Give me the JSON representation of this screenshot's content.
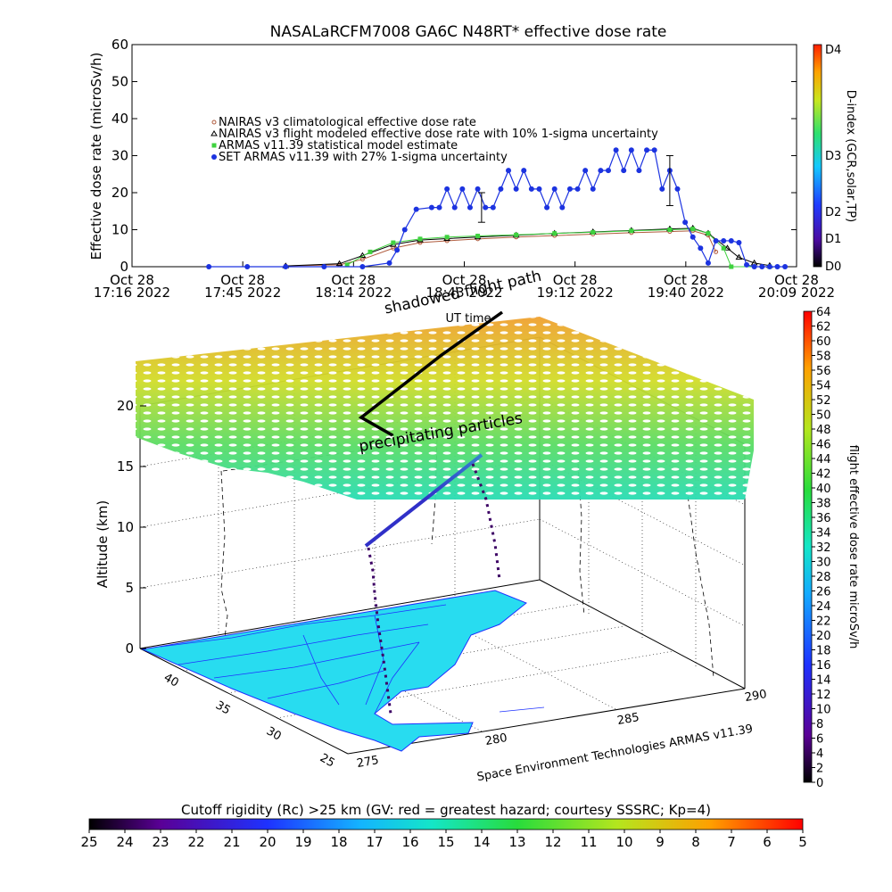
{
  "chart_data": [
    {
      "type": "line",
      "title": "NASALaRCFM7008  GA6C N48RT* effective dose rate",
      "ylabel": "Effective dose rate (microSv/h)",
      "ylim": [
        0,
        60
      ],
      "yticks": [
        "0",
        "10",
        "20",
        "30",
        "40",
        "50",
        "60"
      ],
      "xticks": [
        {
          "l1": "Oct 28",
          "l2": "17:16 2022"
        },
        {
          "l1": "Oct 28",
          "l2": "17:45 2022"
        },
        {
          "l1": "Oct 28",
          "l2": "18:14 2022"
        },
        {
          "l1": "Oct 28",
          "l2": "18:43 2022"
        },
        {
          "l1": "Oct 28",
          "l2": "19:12 2022"
        },
        {
          "l1": "Oct 28",
          "l2": "19:40 2022"
        },
        {
          "l1": "Oct 28",
          "l2": "20:09 2022"
        }
      ],
      "xrange_minutes": [
        0,
        173
      ],
      "legend": [
        "NAIRAS v3 climatological effective dose rate",
        "NAIRAS v3 flight modeled effective dose rate with 10% 1-sigma uncertainty",
        "ARMAS v11.39 statistical model estimate",
        "SET ARMAS v11.39 with 27% 1-sigma uncertainty"
      ],
      "series": [
        {
          "name": "NAIRAS v3 climatological effective dose rate",
          "color": "#b05a3c",
          "x": [
            40,
            54,
            60,
            68,
            75,
            82,
            90,
            100,
            110,
            120,
            130,
            140,
            146,
            150,
            152
          ],
          "y": [
            0.2,
            0.5,
            2,
            5,
            6.5,
            7,
            7.5,
            8,
            8.4,
            8.8,
            9.2,
            9.5,
            9.7,
            8.5,
            4
          ]
        },
        {
          "name": "NAIRAS v3 flight modeled effective dose rate with 10% 1-sigma uncertainty",
          "color": "#000000",
          "x": [
            40,
            54,
            60,
            68,
            75,
            82,
            90,
            100,
            110,
            120,
            130,
            140,
            146,
            150,
            155,
            158,
            162,
            166
          ],
          "y": [
            0.2,
            0.8,
            3,
            6,
            7.2,
            7.6,
            8,
            8.5,
            9,
            9.4,
            9.8,
            10.2,
            10.4,
            9,
            5,
            2.5,
            1,
            0.3
          ]
        },
        {
          "name": "ARMAS v11.39 statistical model estimate",
          "color": "#3fd23f",
          "x": [
            56,
            62,
            68,
            75,
            82,
            90,
            100,
            110,
            120,
            130,
            140,
            146,
            150,
            154,
            156,
            166
          ],
          "y": [
            0.5,
            4,
            6.5,
            7.5,
            8,
            8.3,
            8.6,
            9,
            9.3,
            9.7,
            10,
            10.2,
            9,
            5,
            0,
            0
          ]
        },
        {
          "name": "SET ARMAS v11.39 with 27% 1-sigma uncertainty",
          "color": "#1c33e0",
          "x": [
            20,
            30,
            40,
            50,
            60,
            67,
            69,
            71,
            74,
            78,
            80,
            82,
            84,
            86,
            88,
            90,
            92,
            94,
            96,
            98,
            100,
            102,
            104,
            106,
            108,
            110,
            112,
            114,
            116,
            118,
            120,
            122,
            124,
            126,
            128,
            130,
            132,
            134,
            136,
            138,
            140,
            142,
            144,
            146,
            148,
            150,
            152,
            154,
            156,
            158,
            160,
            162,
            164,
            166,
            168,
            170
          ],
          "y": [
            0,
            0,
            0,
            0,
            0,
            1,
            4.5,
            10,
            15.5,
            16,
            16,
            21,
            16,
            21,
            16,
            21,
            16,
            16,
            21,
            26,
            21,
            26,
            21,
            21,
            16,
            21,
            16,
            21,
            21,
            26,
            21,
            26,
            26,
            31.5,
            26,
            31.5,
            26,
            31.5,
            31.5,
            21,
            26,
            21,
            12,
            8,
            5,
            1,
            7,
            7,
            7,
            6.5,
            0.5,
            0,
            0,
            0,
            0,
            0
          ]
        }
      ],
      "errorbars": [
        {
          "x": 91,
          "low": 12,
          "high": 20
        },
        {
          "x": 140,
          "low": 16.5,
          "high": 30
        }
      ],
      "colorbar": {
        "label": "D-index (GCR,solar,TP)",
        "ticks": [
          "D0",
          "D1",
          "D2",
          "D3",
          "D4"
        ]
      }
    },
    {
      "type": "scatter",
      "xlabel": "",
      "ylabel": "Altitude (km)",
      "zticks": [
        "0",
        "5",
        "10",
        "15",
        "20"
      ],
      "lat_ticks": [
        "25",
        "30",
        "35",
        "40"
      ],
      "lon_ticks": [
        "275",
        "280",
        "285",
        "290"
      ],
      "annotations": {
        "flight_path": "flight path",
        "shadowed": "shadowed",
        "ut_time": "UT time",
        "precipitating": "precipitating particles",
        "credit": "Space Environment Technologies ARMAS v11.39"
      },
      "colorbar_right": {
        "label": "flight effective dose rate microSv/h",
        "ticks": [
          "0",
          "2",
          "4",
          "6",
          "8",
          "10",
          "12",
          "14",
          "16",
          "18",
          "20",
          "22",
          "24",
          "26",
          "28",
          "30",
          "32",
          "34",
          "36",
          "38",
          "40",
          "42",
          "44",
          "46",
          "48",
          "50",
          "52",
          "54",
          "56",
          "58",
          "60",
          "62",
          "64"
        ]
      },
      "colorbar_bottom": {
        "title": "Cutoff rigidity (Rc) >25 km (GV: red = greatest hazard; courtesy SSSRC; Kp=4)",
        "ticks": [
          "25",
          "24",
          "23",
          "22",
          "21",
          "20",
          "19",
          "18",
          "17",
          "16",
          "15",
          "14",
          "13",
          "12",
          "11",
          "10",
          "9",
          "8",
          "7",
          "6",
          "5"
        ]
      }
    }
  ]
}
